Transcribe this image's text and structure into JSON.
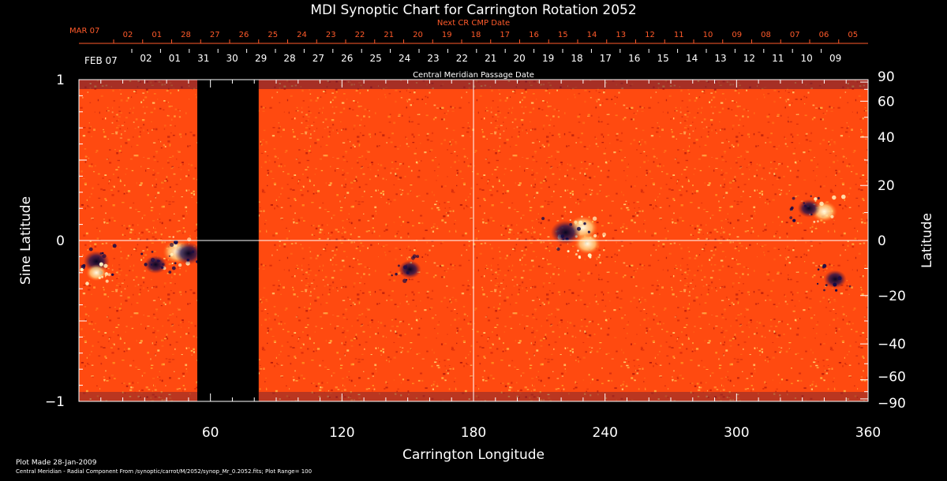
{
  "chart_data": {
    "type": "heatmap",
    "title": "MDI Synoptic Chart for Carrington Rotation 2052",
    "xlabel": "Carrington Longitude",
    "ylabel_left": "Sine Latitude",
    "ylabel_right": "Latitude",
    "xlim": [
      0,
      360
    ],
    "ylim": [
      -1,
      1
    ],
    "x_ticks": [
      "60",
      "120",
      "180",
      "240",
      "300",
      "360"
    ],
    "x_tick_values": [
      60,
      120,
      180,
      240,
      300,
      360
    ],
    "y_ticks_left": [
      "1",
      "0",
      "−1"
    ],
    "y_tick_left_values": [
      1,
      0,
      -1
    ],
    "y_ticks_right": [
      "90",
      "60",
      "40",
      "20",
      "0",
      "−20",
      "−40",
      "−60",
      "−90"
    ],
    "y_tick_right_values": [
      90,
      60,
      40,
      20,
      0,
      -20,
      -40,
      -60,
      -90
    ],
    "data_gap_longitude": [
      54,
      82
    ],
    "colors": {
      "field": "#ff4a10",
      "bright": "#fff7d0",
      "dark": "#0d0a44",
      "gap": "#000000",
      "accent": "#ff5a2a"
    },
    "plot_range": 100,
    "next_cr_axis": {
      "label": "Next CR CMP Date",
      "month_label": "MAR 07",
      "dates": [
        "02",
        "01",
        "28",
        "27",
        "26",
        "25",
        "24",
        "23",
        "22",
        "21",
        "20",
        "19",
        "18",
        "17",
        "16",
        "15",
        "14",
        "13",
        "12",
        "11",
        "10",
        "09",
        "08",
        "07",
        "06",
        "05"
      ]
    },
    "cmp_axis": {
      "label": "Central Meridian Passage Date",
      "month_label": "FEB 07",
      "dates": [
        "02",
        "01",
        "31",
        "30",
        "29",
        "28",
        "27",
        "26",
        "25",
        "24",
        "23",
        "22",
        "21",
        "20",
        "19",
        "18",
        "17",
        "16",
        "15",
        "14",
        "13",
        "12",
        "11",
        "10",
        "09"
      ]
    },
    "features": [
      {
        "type": "bright",
        "lon": 45,
        "sinlat": -0.07,
        "strength": 1.0
      },
      {
        "type": "dark",
        "lon": 50,
        "sinlat": -0.08,
        "strength": 0.9
      },
      {
        "type": "dark",
        "lon": 8,
        "sinlat": -0.13,
        "strength": 0.8
      },
      {
        "type": "dark",
        "lon": 35,
        "sinlat": -0.15,
        "strength": 0.6
      },
      {
        "type": "bright",
        "lon": 230,
        "sinlat": 0.08,
        "strength": 1.0
      },
      {
        "type": "dark",
        "lon": 222,
        "sinlat": 0.05,
        "strength": 1.0
      },
      {
        "type": "bright",
        "lon": 232,
        "sinlat": -0.02,
        "strength": 0.8
      },
      {
        "type": "dark",
        "lon": 151,
        "sinlat": -0.18,
        "strength": 0.6
      },
      {
        "type": "bright",
        "lon": 340,
        "sinlat": 0.18,
        "strength": 0.8
      },
      {
        "type": "dark",
        "lon": 333,
        "sinlat": 0.2,
        "strength": 0.6
      },
      {
        "type": "dark",
        "lon": 345,
        "sinlat": -0.24,
        "strength": 0.6
      },
      {
        "type": "bright",
        "lon": 8,
        "sinlat": -0.2,
        "strength": 0.5
      }
    ]
  },
  "footer": {
    "plot_made": "Plot Made 28-Jan-2009",
    "description": "Central Meridian - Radial Component From /synoptic/carrot/M/2052/synop_Mr_0.2052.fits; Plot Range=  100"
  }
}
